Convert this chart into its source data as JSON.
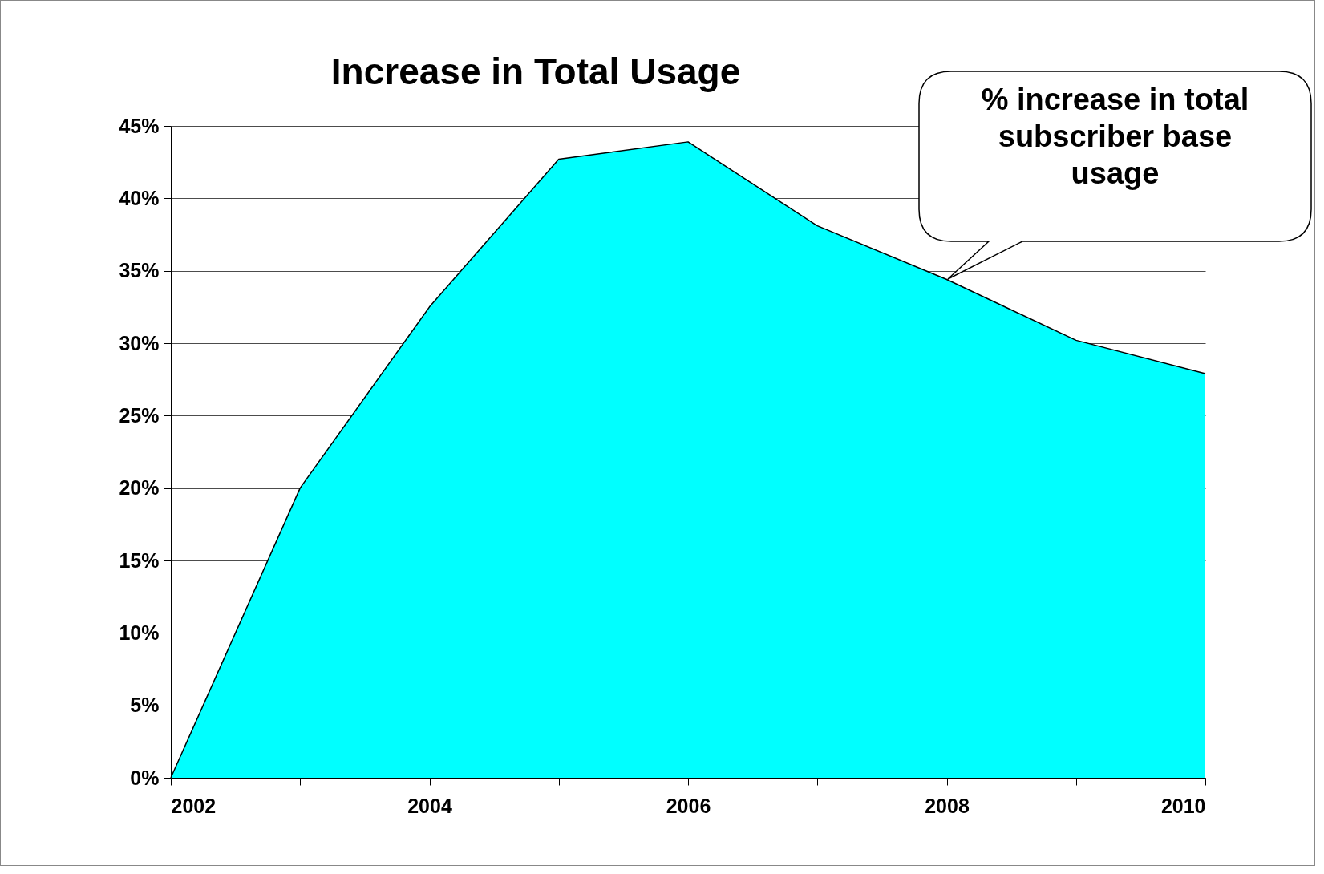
{
  "chart_data": {
    "type": "area",
    "title": "Increase in Total Usage",
    "x": [
      2002,
      2003,
      2004,
      2005,
      2006,
      2007,
      2008,
      2009,
      2010
    ],
    "series": [
      {
        "color": "#00ffff",
        "values": [
          0,
          20,
          32.5,
          42.7,
          43.9,
          38.1,
          34.4,
          30.2,
          27.9
        ]
      }
    ],
    "xlim": [
      2002,
      2010
    ],
    "xticks": [
      2002,
      {
        "value": 2003,
        "label": null
      },
      2004,
      {
        "value": 2005,
        "label": null
      },
      2006,
      {
        "value": 2007,
        "label": null
      },
      2008,
      {
        "value": 2009,
        "label": null
      },
      2010
    ],
    "ylim": [
      0,
      45
    ],
    "yticks": [
      {
        "value": 0,
        "label": "0%"
      },
      {
        "value": 5,
        "label": "5%"
      },
      {
        "value": 10,
        "label": "10%"
      },
      {
        "value": 15,
        "label": "15%"
      },
      {
        "value": 20,
        "label": "20%"
      },
      {
        "value": 25,
        "label": "25%"
      },
      {
        "value": 30,
        "label": "30%"
      },
      {
        "value": 35,
        "label": "35%"
      },
      {
        "value": 40,
        "label": "40%"
      },
      {
        "value": 45,
        "label": "45%"
      }
    ],
    "grid": "y",
    "marker": "none",
    "line_style": "solid",
    "annotations": [
      "% increase in total subscriber base usage"
    ]
  }
}
